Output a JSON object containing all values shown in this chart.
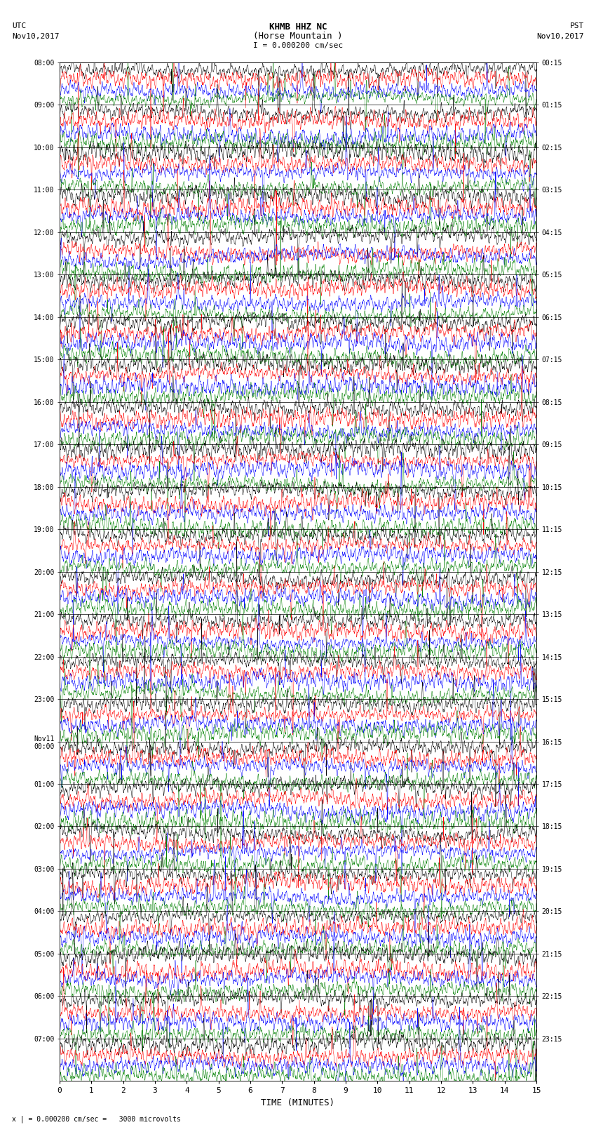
{
  "title_line1": "KHMB HHZ NC",
  "title_line2": "(Horse Mountain )",
  "scale_text": "= 0.000200 cm/sec",
  "bottom_text": "= 0.000200 cm/sec =   3000 microvolts",
  "xlabel": "TIME (MINUTES)",
  "utc_times": [
    "08:00",
    "09:00",
    "10:00",
    "11:00",
    "12:00",
    "13:00",
    "14:00",
    "15:00",
    "16:00",
    "17:00",
    "18:00",
    "19:00",
    "20:00",
    "21:00",
    "22:00",
    "23:00",
    "Nov11\n00:00",
    "01:00",
    "02:00",
    "03:00",
    "04:00",
    "05:00",
    "06:00",
    "07:00"
  ],
  "pst_times": [
    "00:15",
    "01:15",
    "02:15",
    "03:15",
    "04:15",
    "05:15",
    "06:15",
    "07:15",
    "08:15",
    "09:15",
    "10:15",
    "11:15",
    "12:15",
    "13:15",
    "14:15",
    "15:15",
    "16:15",
    "17:15",
    "18:15",
    "19:15",
    "20:15",
    "21:15",
    "22:15",
    "23:15"
  ],
  "n_traces": 24,
  "n_rows_per_trace": 4,
  "colors": [
    "black",
    "red",
    "blue",
    "green"
  ],
  "minutes": 15,
  "background_color": "white",
  "figsize": [
    8.5,
    16.13
  ],
  "dpi": 100
}
